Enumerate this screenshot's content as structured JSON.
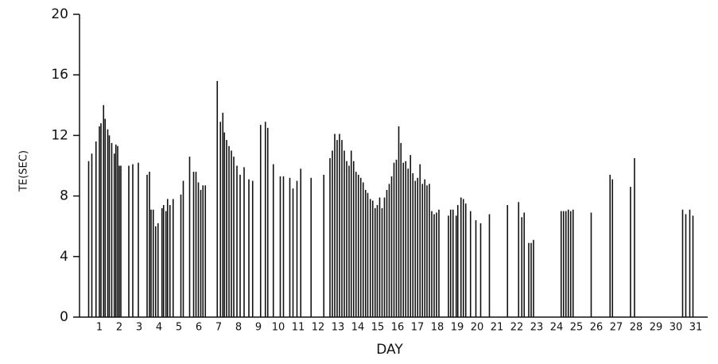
{
  "chart_data": {
    "type": "bar",
    "xlabel": "DAY",
    "ylabel": "TE(SEC)",
    "color": "#111111",
    "x": [
      0.96,
      1.12,
      1.33,
      1.5,
      1.58,
      1.71,
      1.79,
      1.92,
      2.0,
      2.12,
      2.25,
      2.33,
      2.42,
      2.5,
      2.58,
      2.98,
      3.18,
      3.46,
      3.9,
      4.02,
      4.1,
      4.21,
      4.33,
      4.45,
      4.65,
      4.73,
      4.85,
      4.93,
      5.05,
      5.21,
      5.6,
      5.72,
      6.04,
      6.24,
      6.36,
      6.48,
      6.6,
      6.71,
      6.83,
      7.43,
      7.59,
      7.71,
      7.79,
      7.9,
      8.02,
      8.14,
      8.26,
      8.42,
      8.58,
      8.78,
      9.02,
      9.21,
      9.61,
      9.85,
      9.97,
      10.25,
      10.6,
      10.76,
      11.08,
      11.24,
      11.44,
      11.63,
      12.15,
      12.79,
      13.1,
      13.22,
      13.34,
      13.46,
      13.58,
      13.7,
      13.82,
      13.94,
      14.06,
      14.17,
      14.29,
      14.41,
      14.53,
      14.65,
      14.77,
      14.89,
      15.0,
      15.13,
      15.25,
      15.37,
      15.48,
      15.6,
      15.72,
      15.84,
      15.96,
      16.08,
      16.2,
      16.32,
      16.44,
      16.56,
      16.67,
      16.79,
      16.91,
      17.03,
      17.15,
      17.27,
      17.39,
      17.51,
      17.63,
      17.75,
      17.87,
      17.98,
      18.1,
      18.22,
      18.34,
      18.46,
      18.58,
      19.06,
      19.17,
      19.29,
      19.45,
      19.53,
      19.69,
      19.81,
      19.93,
      20.17,
      20.44,
      20.68,
      21.12,
      22.03,
      22.59,
      22.75,
      22.87,
      23.1,
      23.22,
      23.34,
      24.73,
      24.85,
      24.97,
      25.09,
      25.21,
      25.33,
      26.24,
      27.19,
      27.31,
      28.22,
      28.42,
      30.84,
      31.0,
      31.2,
      31.36
    ],
    "values": [
      10.3,
      10.8,
      11.6,
      12.6,
      12.8,
      14.0,
      13.1,
      12.4,
      12.0,
      11.5,
      10.8,
      11.4,
      11.3,
      10.0,
      10.0,
      10.0,
      10.1,
      10.2,
      9.4,
      9.6,
      7.1,
      7.1,
      6.0,
      6.2,
      7.2,
      7.4,
      7.0,
      7.8,
      7.4,
      7.8,
      8.1,
      9.0,
      10.6,
      9.6,
      9.6,
      8.9,
      8.4,
      8.7,
      8.7,
      15.6,
      12.9,
      13.5,
      12.2,
      11.7,
      11.3,
      11.0,
      10.6,
      10.0,
      9.4,
      9.9,
      9.1,
      9.0,
      12.7,
      12.9,
      12.5,
      10.1,
      9.3,
      9.3,
      9.2,
      8.5,
      9.0,
      9.8,
      9.2,
      9.4,
      10.5,
      11.0,
      12.1,
      11.7,
      12.1,
      11.7,
      11.0,
      10.3,
      10.0,
      11.0,
      10.3,
      9.6,
      9.4,
      9.2,
      8.9,
      8.4,
      8.2,
      7.8,
      7.7,
      7.2,
      7.4,
      7.9,
      7.2,
      7.9,
      8.4,
      8.8,
      9.3,
      10.2,
      10.4,
      12.6,
      11.5,
      10.2,
      10.3,
      9.8,
      10.7,
      9.5,
      9.0,
      9.2,
      10.1,
      8.8,
      9.1,
      8.7,
      8.8,
      7.0,
      6.8,
      6.9,
      7.1,
      6.7,
      7.1,
      7.1,
      6.7,
      7.4,
      7.9,
      7.8,
      7.5,
      7.0,
      6.4,
      6.2,
      6.8,
      7.4,
      7.6,
      6.6,
      6.9,
      4.9,
      4.9,
      5.1,
      7.0,
      7.0,
      7.0,
      7.1,
      7.0,
      7.1,
      6.9,
      9.4,
      9.1,
      8.6,
      10.5,
      7.1,
      6.8,
      7.1,
      6.7
    ],
    "xlim": [
      0.5,
      32.1
    ],
    "xticks": [
      {
        "value": 1.5,
        "label": "1"
      },
      {
        "value": 2.5,
        "label": "2"
      },
      {
        "value": 3.5,
        "label": "3"
      },
      {
        "value": 4.5,
        "label": "4"
      },
      {
        "value": 5.5,
        "label": "5"
      },
      {
        "value": 6.5,
        "label": "6"
      },
      {
        "value": 7.5,
        "label": "7"
      },
      {
        "value": 8.5,
        "label": "8"
      },
      {
        "value": 9.5,
        "label": "9"
      },
      {
        "value": 10.5,
        "label": "10"
      },
      {
        "value": 11.5,
        "label": "11"
      },
      {
        "value": 12.5,
        "label": "12"
      },
      {
        "value": 13.5,
        "label": "13"
      },
      {
        "value": 14.5,
        "label": "14"
      },
      {
        "value": 15.5,
        "label": "15"
      },
      {
        "value": 16.5,
        "label": "16"
      },
      {
        "value": 17.5,
        "label": "17"
      },
      {
        "value": 18.5,
        "label": "18"
      },
      {
        "value": 19.5,
        "label": "19"
      },
      {
        "value": 20.5,
        "label": "20"
      },
      {
        "value": 21.5,
        "label": "21"
      },
      {
        "value": 22.5,
        "label": "22"
      },
      {
        "value": 23.5,
        "label": "23"
      },
      {
        "value": 24.5,
        "label": "24"
      },
      {
        "value": 25.5,
        "label": "25"
      },
      {
        "value": 26.5,
        "label": "26"
      },
      {
        "value": 27.5,
        "label": "27"
      },
      {
        "value": 28.5,
        "label": "28"
      },
      {
        "value": 29.5,
        "label": "29"
      },
      {
        "value": 30.5,
        "label": "30"
      },
      {
        "value": 31.5,
        "label": "31"
      }
    ],
    "ylim": [
      0,
      20
    ],
    "yticks": [
      0,
      4,
      8,
      12,
      16,
      20
    ]
  }
}
